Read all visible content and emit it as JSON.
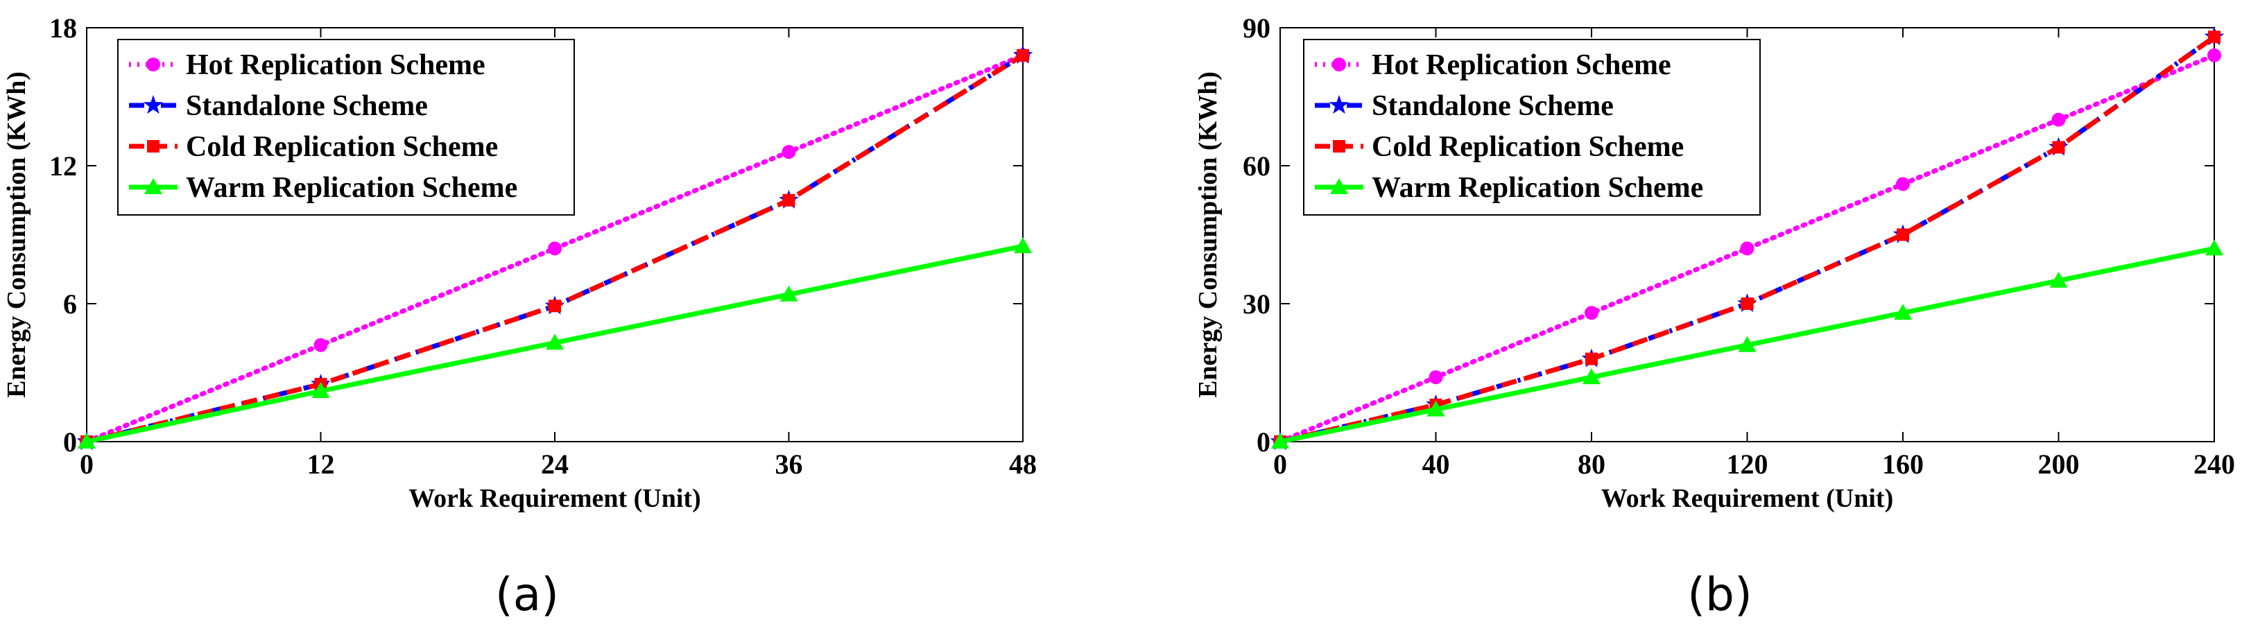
{
  "chart_data": [
    {
      "id": "a",
      "type": "line",
      "caption": "(a)",
      "xlabel": "Work Requirement (Unit)",
      "ylabel": "Energy Consumption (KWh)",
      "xlim": [
        0,
        48
      ],
      "ylim": [
        0,
        18
      ],
      "xticks": [
        "0",
        "12",
        "24",
        "36",
        "48"
      ],
      "yticks": [
        "0",
        "6",
        "12",
        "18"
      ],
      "x": [
        0,
        12,
        24,
        36,
        48
      ],
      "legend_position": "top-left",
      "series": [
        {
          "name": "Hot Replication Scheme",
          "color": "#ff00ff",
          "dash": "dotted",
          "marker": "circle",
          "values": [
            0,
            4.2,
            8.4,
            12.6,
            16.8
          ]
        },
        {
          "name": "Standalone Scheme",
          "color": "#0000ff",
          "dash": "dashdot",
          "marker": "star",
          "values": [
            0,
            2.5,
            5.9,
            10.5,
            16.8
          ]
        },
        {
          "name": "Cold Replication Scheme",
          "color": "#ff0000",
          "dash": "dashed",
          "marker": "square",
          "values": [
            0,
            2.5,
            5.9,
            10.5,
            16.8
          ]
        },
        {
          "name": "Warm Replication Scheme",
          "color": "#00ff00",
          "dash": "solid",
          "marker": "triangle",
          "values": [
            0,
            2.2,
            4.3,
            6.4,
            8.5
          ]
        }
      ]
    },
    {
      "id": "b",
      "type": "line",
      "caption": "(b)",
      "xlabel": "Work Requirement (Unit)",
      "ylabel": "Energy Consumption (KWh)",
      "xlim": [
        0,
        240
      ],
      "ylim": [
        0,
        90
      ],
      "xticks": [
        "0",
        "40",
        "80",
        "120",
        "160",
        "200",
        "240"
      ],
      "yticks": [
        "0",
        "30",
        "60",
        "90"
      ],
      "x": [
        0,
        40,
        80,
        120,
        160,
        200,
        240
      ],
      "legend_position": "top-left",
      "series": [
        {
          "name": "Hot Replication Scheme",
          "color": "#ff00ff",
          "dash": "dotted",
          "marker": "circle",
          "values": [
            0,
            14,
            28,
            42,
            56,
            70,
            84
          ]
        },
        {
          "name": "Standalone Scheme",
          "color": "#0000ff",
          "dash": "dashdot",
          "marker": "star",
          "values": [
            0,
            8,
            18,
            30,
            45,
            64,
            88
          ]
        },
        {
          "name": "Cold Replication Scheme",
          "color": "#ff0000",
          "dash": "dashed",
          "marker": "square",
          "values": [
            0,
            8,
            18,
            30,
            45,
            64,
            88
          ]
        },
        {
          "name": "Warm Replication Scheme",
          "color": "#00ff00",
          "dash": "solid",
          "marker": "triangle",
          "values": [
            0,
            7,
            14,
            21,
            28,
            35,
            42
          ]
        }
      ]
    }
  ]
}
